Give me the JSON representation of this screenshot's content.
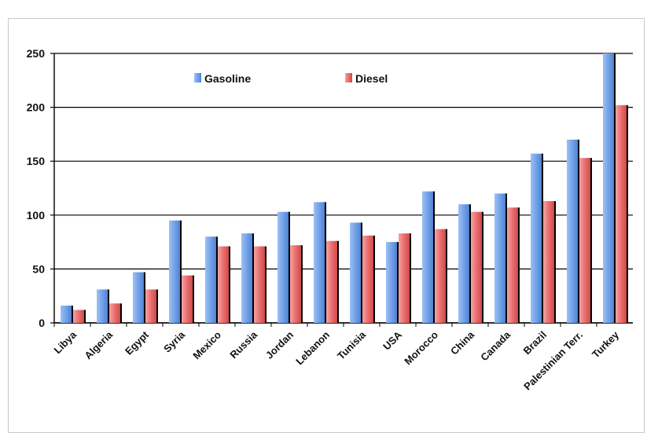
{
  "chart_data": {
    "type": "bar",
    "title": "",
    "xlabel": "",
    "ylabel": "",
    "ylim": [
      0,
      250
    ],
    "yticks": [
      0,
      50,
      100,
      150,
      200,
      250
    ],
    "grid": true,
    "legend_position": "top-center",
    "categories": [
      "Libya",
      "Algeria",
      "Egypt",
      "Syria",
      "Mexico",
      "Russia",
      "Jordan",
      "Lebanon",
      "Tunisia",
      "USA",
      "Morocco",
      "China",
      "Canada",
      "Brazil",
      "Palestinian Terr.",
      "Turkey"
    ],
    "series": [
      {
        "name": "Gasoline",
        "color": "#6f9fe6",
        "values": [
          16,
          31,
          47,
          95,
          80,
          83,
          103,
          112,
          93,
          75,
          122,
          110,
          120,
          157,
          170,
          250
        ]
      },
      {
        "name": "Diesel",
        "color": "#e86a6a",
        "values": [
          12,
          18,
          31,
          44,
          71,
          71,
          72,
          76,
          81,
          83,
          87,
          103,
          107,
          113,
          153,
          202
        ]
      }
    ]
  }
}
